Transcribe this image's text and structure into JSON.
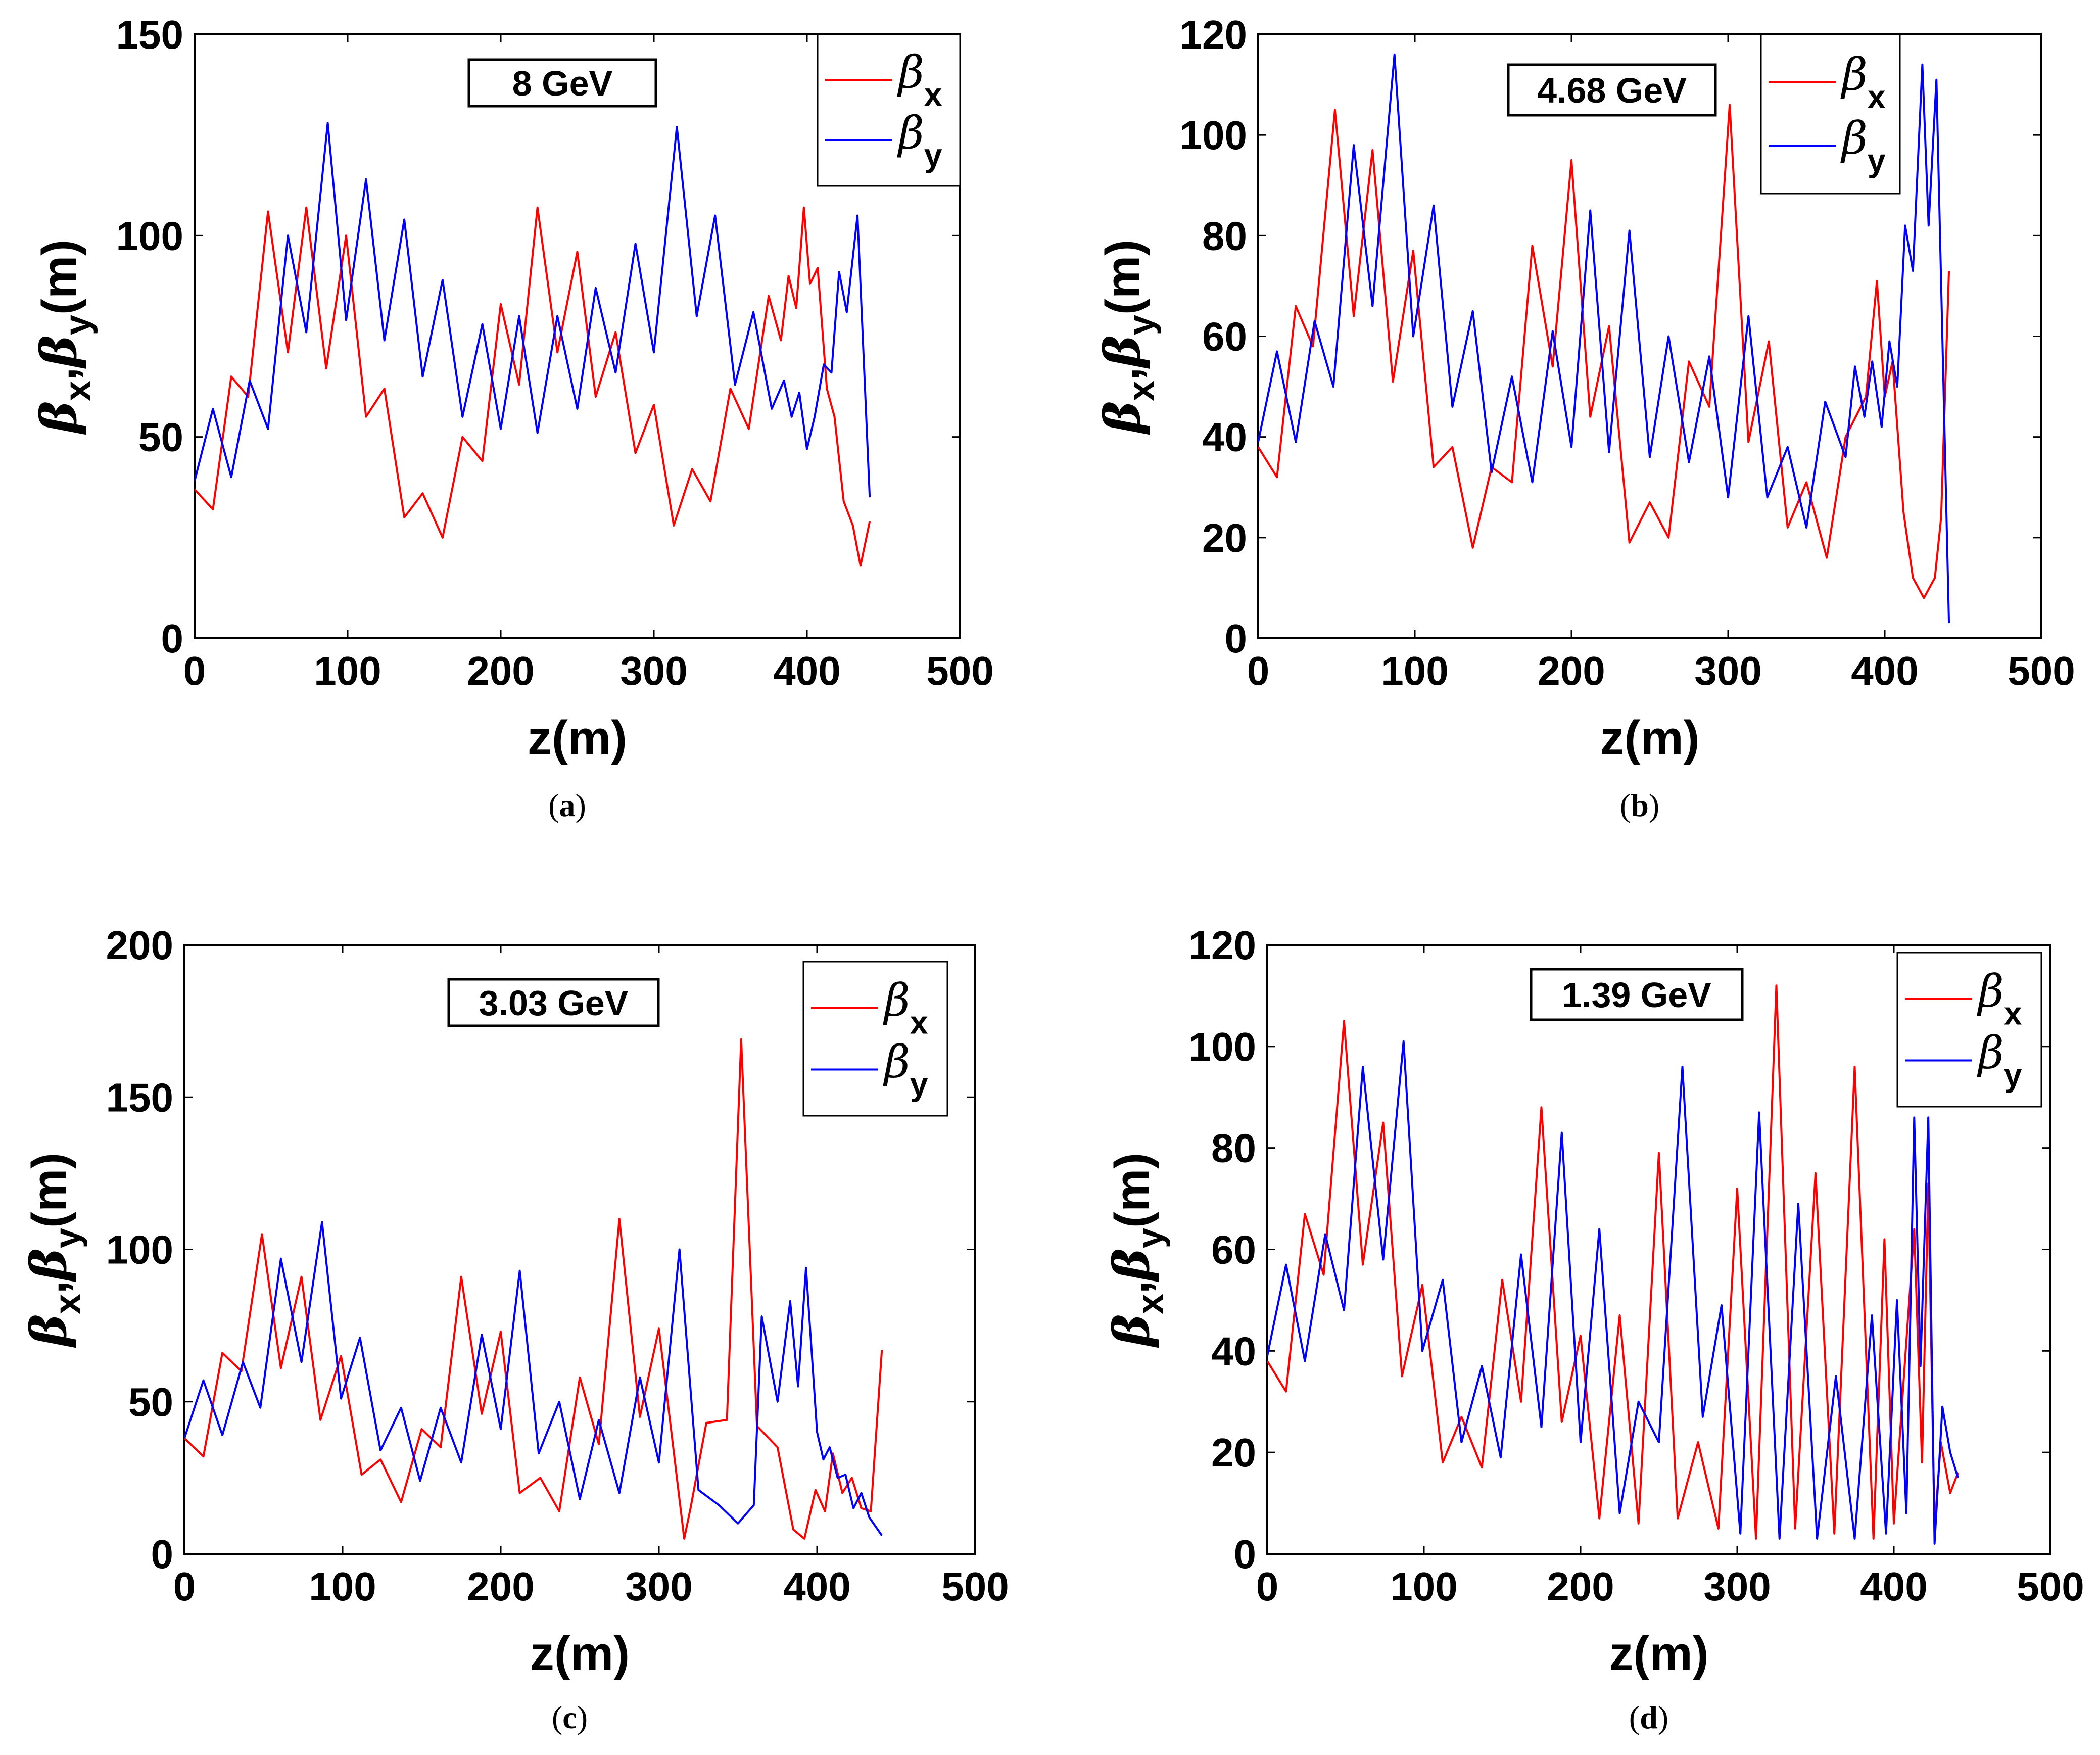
{
  "figure": {
    "panels": [
      "a",
      "b",
      "c",
      "d"
    ]
  },
  "chart_data": [
    {
      "type": "line",
      "panel": "a",
      "caption_open": "(",
      "caption_letter": "a",
      "caption_close": ")",
      "title": "8 GeV",
      "xlabel": "z(m)",
      "ylabel": {
        "b1": "β",
        "s1": "x",
        "sep": ",",
        "b2": "β",
        "s2": "y",
        "unit": "(m)"
      },
      "xlim": [
        0,
        500
      ],
      "ylim": [
        0,
        150
      ],
      "xticks": [
        0,
        100,
        200,
        300,
        400,
        500
      ],
      "yticks": [
        0,
        50,
        100,
        150
      ],
      "legend": {
        "position": "top-right"
      },
      "series": [
        {
          "name": "βx",
          "symbol": "β",
          "sub": "x",
          "color": "#ff0000",
          "x": [
            0,
            12,
            24,
            35,
            48,
            61,
            73,
            86,
            99,
            112,
            124,
            137,
            149,
            162,
            175,
            188,
            200,
            212,
            224,
            237,
            250,
            262,
            275,
            288,
            300,
            313,
            325,
            337,
            350,
            362,
            375,
            383,
            388,
            393,
            398,
            402,
            407,
            413,
            418,
            424,
            430,
            435,
            441
          ],
          "values": [
            37,
            32,
            65,
            60,
            106,
            71,
            107,
            67,
            100,
            55,
            62,
            30,
            36,
            25,
            50,
            44,
            83,
            63,
            107,
            71,
            96,
            60,
            76,
            46,
            58,
            28,
            42,
            34,
            62,
            52,
            85,
            74,
            90,
            82,
            107,
            88,
            92,
            62,
            55,
            34,
            28,
            18,
            29
          ]
        },
        {
          "name": "βy",
          "symbol": "β",
          "sub": "y",
          "color": "#0000ff",
          "x": [
            0,
            12,
            24,
            36,
            48,
            61,
            73,
            87,
            99,
            112,
            124,
            137,
            149,
            162,
            175,
            188,
            200,
            212,
            224,
            237,
            250,
            262,
            275,
            288,
            300,
            315,
            328,
            340,
            353,
            365,
            377,
            385,
            390,
            395,
            400,
            405,
            411,
            416,
            421,
            426,
            433,
            441
          ],
          "values": [
            39,
            57,
            40,
            64,
            52,
            100,
            76,
            128,
            79,
            114,
            74,
            104,
            65,
            89,
            55,
            78,
            52,
            80,
            51,
            80,
            57,
            87,
            66,
            98,
            71,
            127,
            80,
            105,
            63,
            81,
            57,
            64,
            55,
            61,
            47,
            55,
            68,
            66,
            91,
            81,
            105,
            35
          ]
        }
      ]
    },
    {
      "type": "line",
      "panel": "b",
      "caption_open": "(",
      "caption_letter": "b",
      "caption_close": ")",
      "title": "4.68 GeV",
      "xlabel": "z(m)",
      "ylabel": {
        "b1": "β",
        "s1": "x",
        "sep": ",",
        "b2": "β",
        "s2": "y",
        "unit": "(m)"
      },
      "xlim": [
        0,
        500
      ],
      "ylim": [
        0,
        120
      ],
      "xticks": [
        0,
        100,
        200,
        300,
        400,
        500
      ],
      "yticks": [
        0,
        20,
        40,
        60,
        80,
        100,
        120
      ],
      "legend": {
        "position": "top-right"
      },
      "series": [
        {
          "name": "βx",
          "symbol": "β",
          "sub": "x",
          "color": "#ff0000",
          "x": [
            0,
            12,
            24,
            35,
            49,
            61,
            73,
            86,
            99,
            112,
            124,
            137,
            149,
            162,
            175,
            188,
            200,
            212,
            224,
            237,
            250,
            262,
            275,
            288,
            301,
            313,
            326,
            338,
            350,
            363,
            375,
            388,
            395,
            400,
            405,
            412,
            418,
            425,
            432,
            436,
            441
          ],
          "values": [
            38,
            32,
            66,
            58,
            105,
            64,
            97,
            51,
            77,
            34,
            38,
            18,
            34,
            31,
            78,
            54,
            95,
            44,
            62,
            19,
            27,
            20,
            55,
            46,
            106,
            39,
            59,
            22,
            31,
            16,
            40,
            48,
            71,
            48,
            55,
            25,
            12,
            8,
            12,
            24,
            73
          ]
        },
        {
          "name": "βy",
          "symbol": "β",
          "sub": "y",
          "color": "#0000ff",
          "x": [
            0,
            12,
            24,
            36,
            48,
            61,
            73,
            87,
            99,
            112,
            124,
            137,
            149,
            162,
            175,
            188,
            200,
            212,
            224,
            237,
            250,
            262,
            275,
            288,
            300,
            313,
            325,
            338,
            350,
            362,
            375,
            381,
            387,
            392,
            398,
            403,
            408,
            413,
            418,
            424,
            428,
            433,
            441
          ],
          "values": [
            39,
            57,
            39,
            63,
            50,
            98,
            66,
            116,
            60,
            86,
            46,
            65,
            33,
            52,
            31,
            61,
            38,
            85,
            37,
            81,
            36,
            60,
            35,
            56,
            28,
            64,
            28,
            38,
            22,
            47,
            36,
            54,
            44,
            55,
            42,
            59,
            50,
            82,
            73,
            114,
            82,
            111,
            3
          ]
        }
      ]
    },
    {
      "type": "line",
      "panel": "c",
      "caption_open": "(",
      "caption_letter": "c",
      "caption_close": ")",
      "title": "3.03 GeV",
      "xlabel": "z(m)",
      "ylabel": {
        "b1": "β",
        "s1": "x",
        "sep": ",",
        "b2": "β",
        "s2": "y",
        "unit": "(m)"
      },
      "xlim": [
        0,
        500
      ],
      "ylim": [
        0,
        200
      ],
      "xticks": [
        0,
        100,
        200,
        300,
        400,
        500
      ],
      "yticks": [
        0,
        50,
        100,
        150,
        200
      ],
      "legend": {
        "position": "top-right"
      },
      "series": [
        {
          "name": "βx",
          "symbol": "β",
          "sub": "x",
          "color": "#ff0000",
          "x": [
            0,
            12,
            24,
            36,
            49,
            61,
            74,
            86,
            99,
            112,
            124,
            137,
            150,
            162,
            175,
            188,
            200,
            212,
            225,
            237,
            250,
            262,
            275,
            288,
            300,
            316,
            320,
            330,
            343,
            352,
            362,
            375,
            385,
            392,
            399,
            405,
            410,
            416,
            422,
            428,
            434,
            441
          ],
          "values": [
            38,
            32,
            66,
            60,
            105,
            61,
            91,
            44,
            65,
            26,
            31,
            17,
            41,
            35,
            91,
            46,
            73,
            20,
            25,
            14,
            58,
            36,
            110,
            45,
            74,
            5,
            15,
            43,
            44,
            169,
            42,
            35,
            8,
            5,
            21,
            14,
            33,
            20,
            25,
            15,
            14,
            67
          ]
        },
        {
          "name": "βy",
          "symbol": "β",
          "sub": "y",
          "color": "#0000ff",
          "x": [
            0,
            12,
            24,
            37,
            48,
            61,
            74,
            87,
            99,
            111,
            124,
            137,
            149,
            162,
            175,
            188,
            200,
            212,
            224,
            237,
            250,
            262,
            275,
            288,
            300,
            313,
            325,
            338,
            350,
            360,
            365,
            375,
            383,
            388,
            393,
            400,
            404,
            408,
            413,
            418,
            423,
            428,
            433,
            441
          ],
          "values": [
            38,
            57,
            39,
            63,
            48,
            97,
            63,
            109,
            51,
            71,
            34,
            48,
            24,
            48,
            30,
            72,
            41,
            93,
            33,
            50,
            18,
            44,
            20,
            58,
            30,
            100,
            21,
            16,
            10,
            16,
            78,
            50,
            83,
            55,
            94,
            40,
            31,
            35,
            25,
            26,
            15,
            20,
            12,
            6
          ]
        }
      ]
    },
    {
      "type": "line",
      "panel": "d",
      "caption_open": "(",
      "caption_letter": "d",
      "caption_close": ")",
      "title": "1.39 GeV",
      "xlabel": "z(m)",
      "ylabel": {
        "b1": "β",
        "s1": "x",
        "sep": ",",
        "b2": "β",
        "s2": "y",
        "unit": "(m)"
      },
      "xlim": [
        0,
        500
      ],
      "ylim": [
        0,
        120
      ],
      "xticks": [
        0,
        100,
        200,
        300,
        400,
        500
      ],
      "yticks": [
        0,
        20,
        40,
        60,
        80,
        100,
        120
      ],
      "legend": {
        "position": "top-right"
      },
      "series": [
        {
          "name": "βx",
          "symbol": "β",
          "sub": "x",
          "color": "#ff0000",
          "x": [
            0,
            12,
            24,
            36,
            49,
            61,
            74,
            86,
            99,
            112,
            124,
            137,
            150,
            162,
            175,
            188,
            200,
            212,
            225,
            237,
            250,
            262,
            275,
            288,
            300,
            312,
            325,
            337,
            350,
            362,
            375,
            387,
            394,
            400,
            406,
            413,
            418,
            422,
            426,
            430,
            436,
            441
          ],
          "values": [
            38,
            32,
            67,
            55,
            105,
            57,
            85,
            35,
            53,
            18,
            27,
            17,
            54,
            30,
            88,
            26,
            43,
            7,
            47,
            6,
            79,
            7,
            22,
            5,
            72,
            3,
            112,
            5,
            75,
            4,
            96,
            3,
            62,
            6,
            33,
            64,
            18,
            73,
            5,
            22,
            12,
            16
          ]
        },
        {
          "name": "βy",
          "symbol": "β",
          "sub": "y",
          "color": "#0000ff",
          "x": [
            0,
            12,
            24,
            37,
            49,
            61,
            74,
            87,
            99,
            112,
            124,
            137,
            149,
            162,
            175,
            188,
            200,
            212,
            225,
            237,
            250,
            265,
            278,
            290,
            302,
            314,
            327,
            339,
            351,
            363,
            375,
            386,
            395,
            402,
            408,
            413,
            417,
            422,
            426,
            431,
            436,
            441
          ],
          "values": [
            39,
            57,
            38,
            63,
            48,
            96,
            58,
            101,
            40,
            54,
            22,
            37,
            19,
            59,
            25,
            83,
            22,
            64,
            8,
            30,
            22,
            96,
            27,
            49,
            4,
            87,
            3,
            69,
            3,
            35,
            3,
            47,
            4,
            50,
            8,
            86,
            37,
            86,
            2,
            29,
            20,
            15
          ]
        }
      ]
    }
  ]
}
